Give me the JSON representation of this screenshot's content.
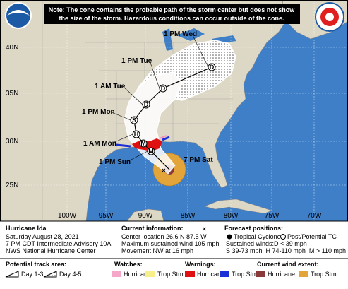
{
  "note": [
    "Note: The cone contains the probable path of the storm center but does not show",
    "the size of the storm. Hazardous conditions can occur outside of the cone."
  ],
  "map": {
    "latitude_labels": [
      "40N",
      "35N",
      "30N",
      "25N"
    ],
    "longitude_labels": [
      "100W",
      "95W",
      "90W",
      "85W",
      "80W",
      "75W",
      "70W"
    ],
    "current_label": "7 PM Sat",
    "track_points": [
      {
        "letter": "M",
        "label": "1 PM Sun"
      },
      {
        "letter": "M"
      },
      {
        "letter": "H",
        "label": "1 AM Mon"
      },
      {
        "letter": "S",
        "label": "1 PM Mon"
      },
      {
        "letter": "D",
        "label": "1 AM Tue"
      },
      {
        "letter": "D",
        "label": "1 PM Tue"
      },
      {
        "letter": "D",
        "label": "1 PM Wed"
      }
    ]
  },
  "storm": {
    "name": "Hurricane Ida",
    "lines": [
      "Saturday August 28, 2021",
      "7 PM CDT Intermediate Advisory 10A",
      "NWS National Hurricane Center"
    ]
  },
  "current_info": {
    "title": "Current information:",
    "lines": [
      "Center location 26.6 N 87.5 W",
      "Maximum sustained wind 105 mph",
      "Movement NW at 16 mph"
    ]
  },
  "forecast": {
    "title": "Forecast positions:",
    "tropical": "Tropical Cyclone",
    "post": "Post/Potential TC",
    "winds_title": "Sustained winds:",
    "winds_d": "D < 39 mph",
    "winds_line": "S 39-73 mph  H 74-110 mph  M > 110 mph"
  },
  "legend": {
    "track": {
      "title": "Potential track area:",
      "day13": "Day 1-3",
      "day45": "Day 4-5"
    },
    "watches": {
      "title": "Watches:",
      "hurricane": "Hurricane",
      "tropical": "Trop Stm"
    },
    "warnings": {
      "title": "Warnings:",
      "hurricane": "Hurricane",
      "tropical": "Trop Stm"
    },
    "wind": {
      "title": "Current wind extent:",
      "hurricane": "Hurricane",
      "tropical": "Trop Stm"
    }
  }
}
